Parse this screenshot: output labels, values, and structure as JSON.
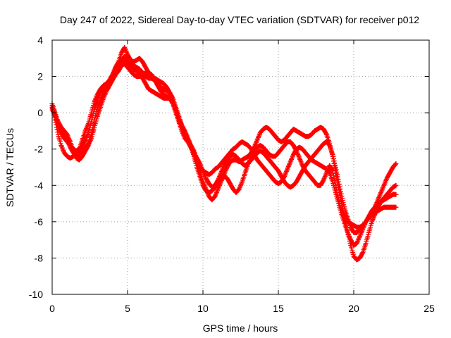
{
  "chart_data": {
    "type": "scatter",
    "title": "Day 247 of 2022, Sidereal Day-to-day VTEC variation (SDTVAR) for receiver p012",
    "xlabel": "GPS time / hours",
    "ylabel": "SDTVAR / TECUs",
    "xlim": [
      0,
      25
    ],
    "ylim": [
      -10,
      4
    ],
    "xticks": [
      0,
      5,
      10,
      15,
      20,
      25
    ],
    "yticks": [
      -10,
      -8,
      -6,
      -4,
      -2,
      0,
      2,
      4
    ],
    "grid": true,
    "legend": "none",
    "marker": "plus",
    "color": "#ff0000",
    "series": [
      {
        "x": [
          0.0,
          0.2,
          0.4,
          0.6,
          0.8,
          1.0,
          1.2,
          1.4,
          1.6,
          1.8,
          2.0,
          2.2,
          2.4,
          2.6,
          2.8,
          3.0,
          3.2,
          3.4,
          3.6,
          3.8,
          4.0,
          4.2,
          4.4,
          4.6,
          4.8,
          5.0,
          5.2,
          5.4,
          5.6,
          5.8,
          6.0,
          6.2,
          6.4,
          6.6,
          6.8,
          7.0,
          7.2,
          7.4,
          7.6,
          7.8,
          8.0,
          8.2,
          8.4,
          8.6,
          8.8,
          9.0,
          9.2,
          9.4,
          9.6,
          9.8,
          10.0,
          10.2,
          10.4,
          10.6,
          10.8,
          11.0,
          11.2,
          11.4,
          11.6,
          11.8,
          12.0,
          12.2,
          12.4,
          12.6,
          12.8,
          13.0,
          13.2,
          13.4,
          13.6,
          13.8,
          14.0,
          14.2,
          14.4,
          14.6,
          14.8,
          15.0,
          15.2,
          15.4,
          15.6,
          15.8,
          16.0,
          16.2,
          16.4,
          16.6,
          16.8,
          17.0,
          17.2,
          17.4,
          17.6,
          17.8,
          18.0,
          18.2,
          18.4,
          18.6,
          18.8,
          19.0,
          19.2,
          19.4,
          19.6,
          19.8,
          20.0,
          20.2,
          20.4,
          20.6,
          20.8,
          21.0,
          21.2,
          21.4,
          21.6,
          21.8,
          22.0,
          22.2,
          22.4,
          22.6,
          22.8
        ],
        "y": [
          0.4,
          -0.4,
          -1.2,
          -1.8,
          -2.2,
          -2.4,
          -2.5,
          -2.4,
          -2.2,
          -2.0,
          -1.5,
          -1.0,
          -0.6,
          0.0,
          0.6,
          1.0,
          1.3,
          1.5,
          1.6,
          1.7,
          2.0,
          2.4,
          2.7,
          2.9,
          3.1,
          3.0,
          2.8,
          2.6,
          2.5,
          2.4,
          2.2,
          2.0,
          1.9,
          1.9,
          1.8,
          1.6,
          1.4,
          1.3,
          1.2,
          1.1,
          0.8,
          0.3,
          -0.2,
          -0.7,
          -1.1,
          -1.5,
          -1.8,
          -2.1,
          -2.6,
          -3.2,
          -3.8,
          -4.2,
          -4.6,
          -4.8,
          -4.6,
          -4.2,
          -3.8,
          -3.4,
          -3.0,
          -2.7,
          -2.6,
          -2.6,
          -2.7,
          -2.6,
          -2.5,
          -2.4,
          -2.2,
          -1.9,
          -1.5,
          -1.1,
          -0.9,
          -0.8,
          -0.9,
          -1.1,
          -1.3,
          -1.5,
          -1.6,
          -1.5,
          -1.3,
          -1.1,
          -0.9,
          -1.0,
          -1.1,
          -1.2,
          -1.3,
          -1.3,
          -1.2,
          -1.0,
          -0.9,
          -0.8,
          -0.9,
          -1.2,
          -1.7,
          -2.4,
          -3.2,
          -4.1,
          -5.0,
          -5.8,
          -6.6,
          -7.3,
          -7.9,
          -8.1,
          -8.0,
          -7.7,
          -7.2,
          -6.6,
          -6.0,
          -5.6,
          -5.2,
          -4.9,
          -4.7,
          -4.5,
          -4.3,
          -4.1,
          -4.0
        ]
      },
      {
        "x": [
          0.0,
          0.2,
          0.4,
          0.6,
          0.8,
          1.0,
          1.2,
          1.4,
          1.6,
          1.8,
          2.0,
          2.2,
          2.4,
          2.6,
          2.8,
          3.0,
          3.2,
          3.4,
          3.6,
          3.8,
          4.0,
          4.2,
          4.4,
          4.6,
          4.8,
          5.0,
          5.2,
          5.4,
          5.6,
          5.8,
          6.0,
          6.2,
          6.4,
          6.6,
          6.8,
          7.0,
          7.2,
          7.4,
          7.6,
          7.8,
          8.0,
          8.2,
          8.4,
          8.6,
          8.8,
          9.0,
          9.2,
          9.4,
          9.6,
          9.8,
          10.0,
          10.2,
          10.4,
          10.6,
          10.8,
          11.0,
          11.2,
          11.4,
          11.6,
          11.8,
          12.0,
          12.2,
          12.4,
          12.6,
          12.8,
          13.0,
          13.2,
          13.4,
          13.6,
          13.8,
          14.0,
          14.2,
          14.4,
          14.6,
          14.8,
          15.0,
          15.2,
          15.4,
          15.6,
          15.8,
          16.0,
          16.2,
          16.4,
          16.6,
          16.8,
          17.0,
          17.2,
          17.4,
          17.6,
          17.8,
          18.0,
          18.2,
          18.4,
          18.6,
          18.8,
          19.0,
          19.2,
          19.4,
          19.6,
          19.8,
          20.0,
          20.2,
          20.4,
          20.6,
          20.8,
          21.0,
          21.2,
          21.4,
          21.6,
          21.8,
          22.0,
          22.2,
          22.4,
          22.6,
          22.8
        ],
        "y": [
          0.2,
          -0.2,
          -0.7,
          -1.1,
          -1.4,
          -1.6,
          -1.8,
          -2.0,
          -2.1,
          -2.0,
          -1.8,
          -1.5,
          -1.1,
          -0.5,
          0.2,
          0.7,
          1.1,
          1.4,
          1.6,
          1.8,
          2.1,
          2.5,
          2.8,
          3.3,
          3.6,
          3.2,
          2.9,
          2.8,
          2.9,
          3.0,
          2.8,
          2.5,
          2.2,
          2.0,
          1.9,
          1.8,
          1.7,
          1.6,
          1.4,
          1.1,
          0.6,
          0.1,
          -0.4,
          -0.8,
          -1.2,
          -1.5,
          -1.9,
          -2.3,
          -2.7,
          -3.0,
          -3.2,
          -3.3,
          -3.4,
          -3.3,
          -3.1,
          -3.0,
          -2.8,
          -2.6,
          -2.4,
          -2.2,
          -2.0,
          -1.9,
          -1.7,
          -1.6,
          -1.7,
          -1.8,
          -2.0,
          -2.3,
          -2.6,
          -2.8,
          -3.0,
          -3.2,
          -3.4,
          -3.6,
          -3.8,
          -3.9,
          -3.8,
          -3.5,
          -3.1,
          -2.7,
          -2.3,
          -2.0,
          -1.9,
          -2.0,
          -2.2,
          -2.4,
          -2.6,
          -2.7,
          -2.8,
          -2.9,
          -3.0,
          -3.1,
          -3.3,
          -3.8,
          -4.4,
          -5.0,
          -5.6,
          -6.1,
          -6.6,
          -7.0,
          -7.3,
          -7.2,
          -6.8,
          -6.4,
          -6.0,
          -5.7,
          -5.4,
          -5.2,
          -5.0,
          -4.9,
          -4.8,
          -4.7,
          -4.6,
          -4.5,
          -4.5
        ]
      },
      {
        "x": [
          0.0,
          0.2,
          0.4,
          0.6,
          0.8,
          1.0,
          1.2,
          1.4,
          1.6,
          1.8,
          2.0,
          2.2,
          2.4,
          2.6,
          2.8,
          3.0,
          3.2,
          3.4,
          3.6,
          3.8,
          4.0,
          4.2,
          4.4,
          4.6,
          4.8,
          5.0,
          5.2,
          5.4,
          5.6,
          5.8,
          6.0,
          6.2,
          6.4,
          6.6,
          6.8,
          7.0,
          7.2,
          7.4,
          7.6,
          7.8,
          8.0,
          8.2,
          8.4,
          8.6,
          8.8,
          9.0,
          9.2,
          9.4,
          9.6,
          9.8,
          10.0,
          10.2,
          10.4,
          10.6,
          10.8,
          11.0,
          11.2,
          11.4,
          11.6,
          11.8,
          12.0,
          12.2,
          12.4,
          12.6,
          12.8,
          13.0,
          13.2,
          13.4,
          13.6,
          13.8,
          14.0,
          14.2,
          14.4,
          14.6,
          14.8,
          15.0,
          15.2,
          15.4,
          15.6,
          15.8,
          16.0,
          16.2,
          16.4,
          16.6,
          16.8,
          17.0,
          17.2,
          17.4,
          17.6,
          17.8,
          18.0,
          18.2,
          18.4,
          18.6,
          18.8,
          19.0,
          19.2,
          19.4,
          19.6,
          19.8,
          20.0,
          20.2,
          20.4,
          20.6,
          20.8,
          21.0,
          21.2,
          21.4,
          21.6,
          21.8,
          22.0,
          22.2,
          22.4,
          22.6,
          22.8
        ],
        "y": [
          0.5,
          0.0,
          -0.6,
          -1.0,
          -1.3,
          -1.5,
          -1.9,
          -2.2,
          -2.4,
          -2.3,
          -2.1,
          -1.9,
          -1.7,
          -1.2,
          -0.4,
          0.3,
          0.7,
          1.1,
          1.4,
          1.6,
          1.9,
          2.2,
          2.6,
          2.8,
          2.9,
          2.7,
          2.5,
          2.4,
          2.3,
          2.1,
          1.9,
          1.6,
          1.3,
          1.2,
          1.1,
          1.0,
          0.9,
          0.8,
          0.8,
          0.8,
          0.6,
          0.2,
          -0.3,
          -0.7,
          -1.0,
          -1.4,
          -1.8,
          -2.4,
          -3.0,
          -3.5,
          -4.0,
          -4.3,
          -4.4,
          -4.3,
          -4.1,
          -3.8,
          -3.6,
          -3.5,
          -3.6,
          -3.9,
          -4.2,
          -4.4,
          -4.2,
          -3.8,
          -3.3,
          -2.8,
          -2.4,
          -2.1,
          -1.9,
          -1.8,
          -1.9,
          -2.1,
          -2.3,
          -2.4,
          -2.4,
          -2.2,
          -2.0,
          -1.8,
          -1.6,
          -1.6,
          -1.8,
          -2.1,
          -2.5,
          -2.9,
          -3.2,
          -3.4,
          -3.6,
          -3.8,
          -4.0,
          -4.0,
          -3.7,
          -3.3,
          -2.9,
          -3.2,
          -4.0,
          -4.8,
          -5.4,
          -5.8,
          -6.0,
          -6.1,
          -6.2,
          -6.3,
          -6.3,
          -6.2,
          -6.0,
          -5.8,
          -5.5,
          -5.2,
          -4.8,
          -4.4,
          -4.0,
          -3.6,
          -3.3,
          -3.0,
          -2.8
        ]
      },
      {
        "x": [
          0.0,
          0.2,
          0.4,
          0.6,
          0.8,
          1.0,
          1.2,
          1.4,
          1.6,
          1.8,
          2.0,
          2.2,
          2.4,
          2.6,
          2.8,
          3.0,
          3.2,
          3.4,
          3.6,
          3.8,
          4.0,
          4.2,
          4.4,
          4.6,
          4.8,
          5.0,
          5.2,
          5.4,
          5.6,
          5.8,
          6.0,
          6.2,
          6.4,
          6.6,
          6.8,
          7.0,
          7.2,
          7.4,
          7.6,
          7.8,
          8.0,
          8.2,
          8.4,
          8.6,
          8.8,
          9.0,
          9.2,
          9.4,
          9.6,
          9.8,
          10.0,
          10.2,
          10.4,
          10.6,
          10.8,
          11.0,
          11.2,
          11.4,
          11.6,
          11.8,
          12.0,
          12.2,
          12.4,
          12.6,
          12.8,
          13.0,
          13.2,
          13.4,
          13.6,
          13.8,
          14.0,
          14.2,
          14.4,
          14.6,
          14.8,
          15.0,
          15.2,
          15.4,
          15.6,
          15.8,
          16.0,
          16.2,
          16.4,
          16.6,
          16.8,
          17.0,
          17.2,
          17.4,
          17.6,
          17.8,
          18.0,
          18.2,
          18.4,
          18.6,
          18.8,
          19.0,
          19.2,
          19.4,
          19.6,
          19.8,
          20.0,
          20.2,
          20.4,
          20.6,
          20.8,
          21.0,
          21.2,
          21.4,
          21.6,
          21.8,
          22.0,
          22.2,
          22.4,
          22.6,
          22.8
        ],
        "y": [
          0.3,
          -0.1,
          -0.5,
          -0.8,
          -1.0,
          -1.2,
          -1.6,
          -2.1,
          -2.5,
          -2.6,
          -2.4,
          -2.1,
          -1.8,
          -1.4,
          -0.8,
          -0.2,
          0.3,
          0.8,
          1.2,
          1.5,
          1.8,
          2.1,
          2.3,
          2.6,
          2.7,
          2.5,
          2.3,
          2.1,
          2.0,
          2.0,
          2.1,
          2.2,
          2.2,
          2.1,
          1.8,
          1.5,
          1.2,
          1.0,
          0.9,
          0.8,
          0.5,
          0.0,
          -0.5,
          -1.0,
          -1.4,
          -1.6,
          -1.9,
          -2.2,
          -2.5,
          -2.8,
          -3.2,
          -3.6,
          -3.9,
          -4.1,
          -4.0,
          -3.7,
          -3.3,
          -2.9,
          -2.6,
          -2.4,
          -2.3,
          -2.4,
          -2.6,
          -2.8,
          -2.9,
          -2.8,
          -2.6,
          -2.4,
          -2.2,
          -2.1,
          -2.2,
          -2.4,
          -2.6,
          -2.8,
          -3.0,
          -3.2,
          -3.5,
          -3.8,
          -4.0,
          -4.1,
          -4.0,
          -3.8,
          -3.5,
          -3.2,
          -2.9,
          -2.7,
          -2.5,
          -2.3,
          -2.1,
          -1.9,
          -1.7,
          -1.6,
          -1.8,
          -2.3,
          -3.0,
          -3.8,
          -4.6,
          -5.3,
          -5.8,
          -6.3,
          -6.6,
          -6.6,
          -6.4,
          -6.2,
          -6.0,
          -5.8,
          -5.6,
          -5.5,
          -5.4,
          -5.3,
          -5.2,
          -5.2,
          -5.2,
          -5.2,
          -5.2
        ]
      }
    ]
  }
}
